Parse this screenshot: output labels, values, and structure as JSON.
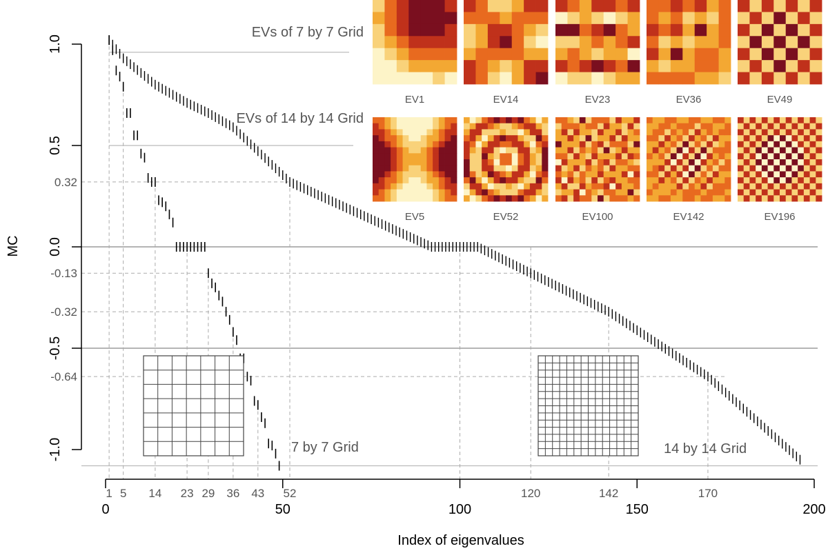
{
  "chart_data": {
    "type": "scatter",
    "xlabel": "Index of eigenvalues",
    "ylabel": "MC",
    "xlim": [
      0,
      200
    ],
    "ylim": [
      -1.05,
      1.05
    ],
    "x_major_ticks": [
      0,
      50,
      100,
      150,
      200
    ],
    "x_minor_ticks": [
      "1",
      "5",
      "14",
      "23",
      "29",
      "36",
      "43",
      "52",
      "120",
      "142",
      "170"
    ],
    "y_major_ticks": [
      "1.0",
      "0.5",
      "0.0",
      "-0.5",
      "-1.0"
    ],
    "y_minor_ticks": [
      "0.32",
      "-0.13",
      "-0.32",
      "-0.64"
    ],
    "reference_lines": [
      {
        "y": 0.96,
        "label": "EVs of 7 by 7 Grid"
      },
      {
        "y": 0.5,
        "label": "EVs of 14 by 14 Grid"
      },
      {
        "y": 0.0,
        "label": ""
      },
      {
        "y": -0.5,
        "label": ""
      },
      {
        "y": -1.08,
        "label": ""
      }
    ],
    "series": [
      {
        "name": "7 by 7 Grid",
        "x": [
          1,
          2,
          3,
          4,
          5,
          6,
          7,
          8,
          9,
          10,
          11,
          12,
          13,
          14,
          15,
          16,
          17,
          18,
          19,
          20,
          21,
          22,
          23,
          24,
          25,
          26,
          27,
          28,
          29,
          30,
          31,
          32,
          33,
          34,
          35,
          36,
          37,
          38,
          39,
          40,
          41,
          42,
          43,
          44,
          45,
          46,
          47,
          48,
          49
        ],
        "y": [
          1.02,
          0.97,
          0.87,
          0.84,
          0.79,
          0.66,
          0.66,
          0.55,
          0.55,
          0.46,
          0.44,
          0.34,
          0.32,
          0.32,
          0.23,
          0.22,
          0.2,
          0.16,
          0.12,
          0.0,
          0.0,
          0.0,
          0.0,
          0.0,
          0.0,
          0.0,
          0.0,
          0.0,
          -0.13,
          -0.18,
          -0.2,
          -0.24,
          -0.27,
          -0.32,
          -0.36,
          -0.42,
          -0.46,
          -0.55,
          -0.55,
          -0.64,
          -0.66,
          -0.76,
          -0.78,
          -0.84,
          -0.87,
          -0.97,
          -0.98,
          -1.02,
          -1.08
        ]
      },
      {
        "name": "14 by 14 Grid",
        "x_range": [
          1,
          196
        ],
        "anchor_x": [
          1,
          5,
          14,
          23,
          29,
          36,
          52,
          92,
          105,
          120,
          142,
          170,
          196
        ],
        "anchor_y": [
          1.02,
          0.93,
          0.8,
          0.71,
          0.66,
          0.59,
          0.32,
          0.0,
          0.0,
          -0.13,
          -0.32,
          -0.64,
          -1.05
        ]
      }
    ],
    "annotations": [
      "7 by 7 Grid",
      "14 by 14 Grid"
    ],
    "inset_panels": [
      {
        "label": "EV1"
      },
      {
        "label": "EV14"
      },
      {
        "label": "EV23"
      },
      {
        "label": "EV36"
      },
      {
        "label": "EV49"
      },
      {
        "label": "EV5"
      },
      {
        "label": "EV52"
      },
      {
        "label": "EV100"
      },
      {
        "label": "EV142"
      },
      {
        "label": "EV196"
      }
    ],
    "heatmap_colors": [
      "#fdf4c8",
      "#f9d27a",
      "#f3a833",
      "#e86a1f",
      "#c0311b",
      "#7a0f1f"
    ],
    "grid_panels_cells": [
      7,
      14
    ]
  }
}
